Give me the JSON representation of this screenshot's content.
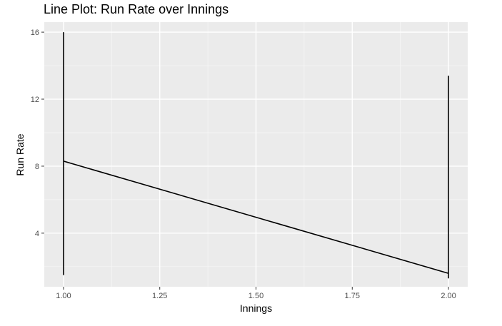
{
  "chart_data": {
    "type": "line",
    "title": "Line Plot: Run Rate over Innings",
    "xlabel": "Innings",
    "ylabel": "Run Rate",
    "xlim": [
      0.95,
      2.05
    ],
    "ylim": [
      0.8,
      16.6
    ],
    "x_ticks": [
      1.0,
      1.25,
      1.5,
      1.75,
      2.0
    ],
    "x_tick_labels": [
      "1.00",
      "1.25",
      "1.50",
      "1.75",
      "2.00"
    ],
    "y_ticks": [
      4,
      8,
      12,
      16
    ],
    "y_tick_labels": [
      "4",
      "8",
      "12",
      "16"
    ],
    "grid": true,
    "legend": "none",
    "series": [
      {
        "color": "#000000",
        "points": [
          {
            "x": 1.0,
            "y": 1.5
          },
          {
            "x": 1.0,
            "y": 16.0
          },
          {
            "x": 1.0,
            "y": 8.3
          },
          {
            "x": 2.0,
            "y": 1.6
          },
          {
            "x": 2.0,
            "y": 13.4
          },
          {
            "x": 2.0,
            "y": 1.3
          },
          {
            "x": 2.0,
            "y": 11.7
          }
        ]
      }
    ]
  }
}
